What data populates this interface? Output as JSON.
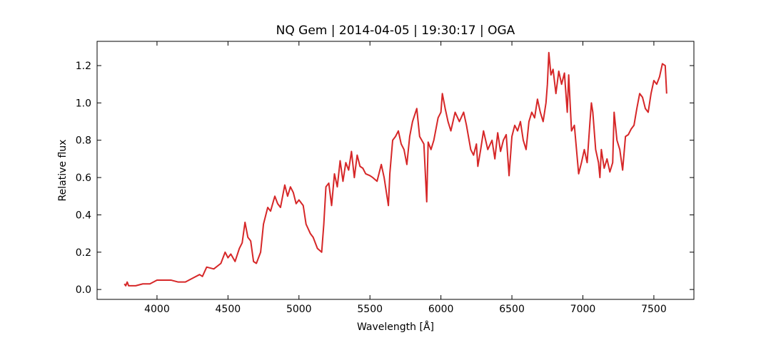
{
  "chart_data": {
    "type": "line",
    "title": "NQ Gem | 2014-04-05 | 19:30:17 | OGA",
    "xlabel": "Wavelength [Å]",
    "ylabel": "Relative flux",
    "color": "#d62728",
    "x": [
      3770,
      3780,
      3790,
      3800,
      3850,
      3900,
      3950,
      4000,
      4050,
      4100,
      4150,
      4200,
      4250,
      4300,
      4320,
      4350,
      4400,
      4450,
      4480,
      4500,
      4520,
      4550,
      4580,
      4600,
      4620,
      4640,
      4660,
      4680,
      4700,
      4730,
      4750,
      4780,
      4800,
      4830,
      4850,
      4870,
      4900,
      4920,
      4940,
      4960,
      4980,
      5000,
      5030,
      5050,
      5080,
      5100,
      5130,
      5160,
      5175,
      5190,
      5210,
      5230,
      5250,
      5270,
      5290,
      5310,
      5330,
      5350,
      5370,
      5390,
      5410,
      5430,
      5450,
      5470,
      5500,
      5520,
      5550,
      5580,
      5600,
      5630,
      5640,
      5660,
      5680,
      5700,
      5720,
      5740,
      5760,
      5780,
      5800,
      5830,
      5850,
      5880,
      5900,
      5910,
      5930,
      5950,
      5980,
      6000,
      6010,
      6030,
      6050,
      6070,
      6100,
      6130,
      6160,
      6180,
      6210,
      6230,
      6250,
      6260,
      6280,
      6300,
      6330,
      6360,
      6380,
      6400,
      6420,
      6440,
      6460,
      6480,
      6500,
      6520,
      6540,
      6560,
      6580,
      6600,
      6620,
      6640,
      6660,
      6680,
      6700,
      6720,
      6740,
      6750,
      6760,
      6775,
      6790,
      6810,
      6830,
      6850,
      6870,
      6890,
      6900,
      6920,
      6940,
      6970,
      6990,
      7010,
      7030,
      7050,
      7060,
      7070,
      7090,
      7110,
      7120,
      7130,
      7150,
      7170,
      7190,
      7210,
      7220,
      7240,
      7260,
      7280,
      7300,
      7320,
      7340,
      7360,
      7380,
      7400,
      7420,
      7440,
      7460,
      7480,
      7500,
      7520,
      7540,
      7560,
      7580,
      7590
    ],
    "values": [
      0.03,
      0.02,
      0.04,
      0.02,
      0.02,
      0.03,
      0.03,
      0.05,
      0.05,
      0.05,
      0.04,
      0.04,
      0.06,
      0.08,
      0.07,
      0.12,
      0.11,
      0.14,
      0.2,
      0.17,
      0.19,
      0.15,
      0.22,
      0.25,
      0.36,
      0.28,
      0.26,
      0.15,
      0.14,
      0.2,
      0.35,
      0.44,
      0.42,
      0.5,
      0.46,
      0.44,
      0.56,
      0.5,
      0.55,
      0.52,
      0.46,
      0.48,
      0.45,
      0.35,
      0.3,
      0.28,
      0.22,
      0.2,
      0.35,
      0.55,
      0.57,
      0.45,
      0.62,
      0.55,
      0.69,
      0.58,
      0.68,
      0.64,
      0.74,
      0.6,
      0.72,
      0.66,
      0.65,
      0.62,
      0.61,
      0.6,
      0.58,
      0.67,
      0.6,
      0.45,
      0.62,
      0.8,
      0.82,
      0.85,
      0.78,
      0.75,
      0.67,
      0.82,
      0.9,
      0.97,
      0.82,
      0.78,
      0.47,
      0.79,
      0.75,
      0.8,
      0.92,
      0.95,
      1.05,
      0.97,
      0.9,
      0.85,
      0.95,
      0.9,
      0.95,
      0.88,
      0.75,
      0.72,
      0.78,
      0.66,
      0.75,
      0.85,
      0.75,
      0.8,
      0.7,
      0.84,
      0.74,
      0.8,
      0.83,
      0.61,
      0.82,
      0.88,
      0.85,
      0.9,
      0.8,
      0.75,
      0.9,
      0.95,
      0.92,
      1.02,
      0.95,
      0.9,
      1.0,
      1.1,
      1.27,
      1.15,
      1.18,
      1.05,
      1.17,
      1.1,
      1.16,
      0.95,
      1.15,
      0.85,
      0.88,
      0.62,
      0.68,
      0.75,
      0.68,
      0.9,
      1.0,
      0.95,
      0.75,
      0.68,
      0.6,
      0.75,
      0.65,
      0.7,
      0.63,
      0.68,
      0.95,
      0.8,
      0.75,
      0.64,
      0.82,
      0.83,
      0.86,
      0.88,
      0.97,
      1.05,
      1.03,
      0.97,
      0.95,
      1.05,
      1.12,
      1.1,
      1.14,
      1.21,
      1.2,
      1.05
    ],
    "xlim": [
      3578,
      7782
    ],
    "ylim": [
      -0.053,
      1.33
    ],
    "xticks": [
      4000,
      4500,
      5000,
      5500,
      6000,
      6500,
      7000,
      7500
    ],
    "yticks": [
      {
        "value": 0,
        "label": "0.0"
      },
      0.2,
      0.4,
      0.6,
      0.8,
      {
        "value": 1,
        "label": "1.0"
      },
      1.2
    ]
  }
}
